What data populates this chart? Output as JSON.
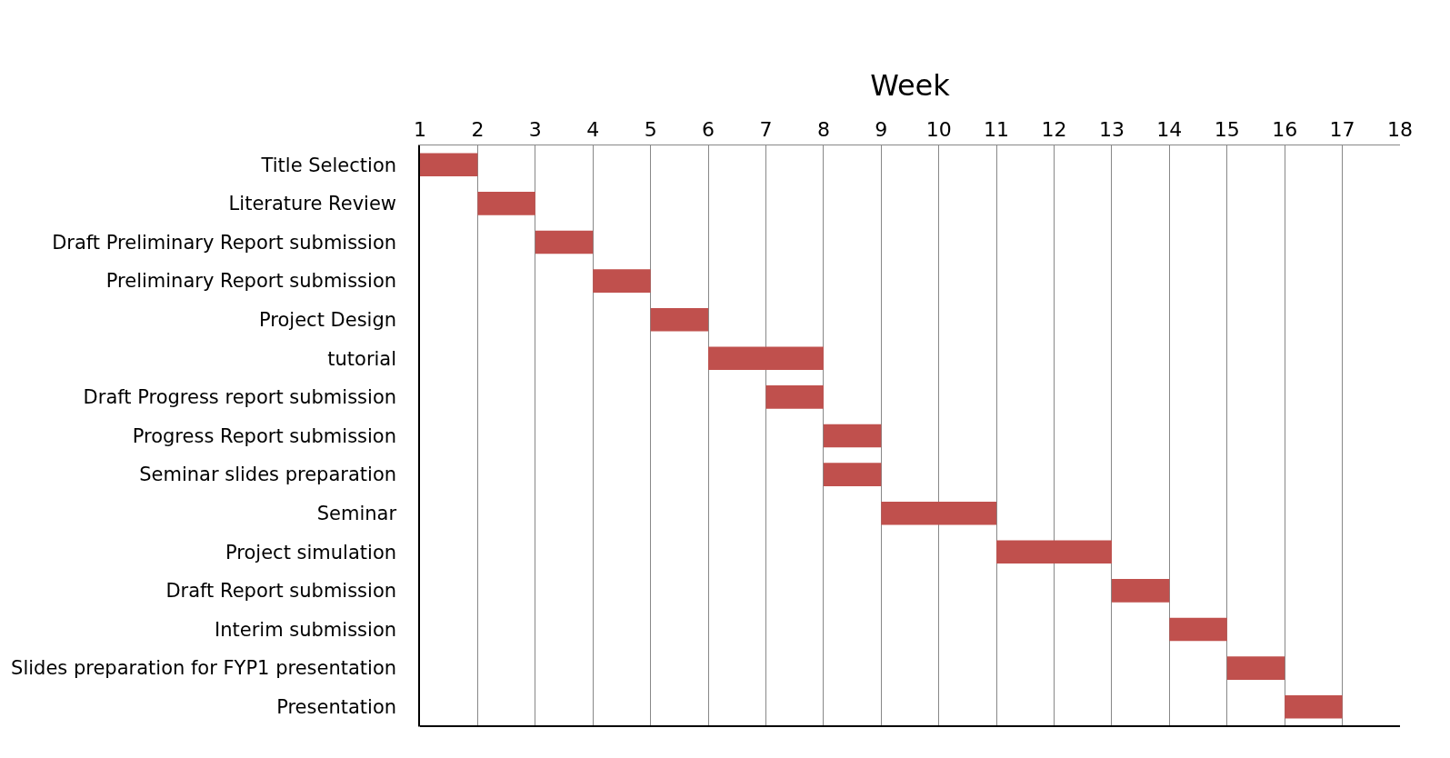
{
  "chart_data": {
    "type": "bar",
    "orientation": "horizontal",
    "xlabel": "Week",
    "categories": [
      "Title Selection",
      "Literature Review",
      "Draft Preliminary Report submission",
      "Preliminary Report submission",
      "Project Design",
      "tutorial",
      "Draft Progress report submission",
      "Progress Report submission",
      "Seminar slides preparation",
      "Seminar",
      "Project simulation",
      "Draft Report submission",
      "Interim submission",
      "Slides preparation for FYP1 presentation",
      "Presentation"
    ],
    "base": [
      1,
      2,
      3,
      4,
      5,
      6,
      7,
      8,
      8,
      9,
      11,
      13,
      14,
      15,
      16
    ],
    "values": [
      1,
      1,
      1,
      1,
      1,
      2,
      1,
      1,
      1,
      2,
      2,
      1,
      1,
      1,
      1
    ],
    "color": "#c0504d",
    "xlim": [
      1,
      18
    ],
    "xticks": [
      1,
      2,
      3,
      4,
      5,
      6,
      7,
      8,
      9,
      10,
      11,
      12,
      13,
      14,
      15,
      16,
      17,
      18
    ],
    "grid": "x"
  }
}
